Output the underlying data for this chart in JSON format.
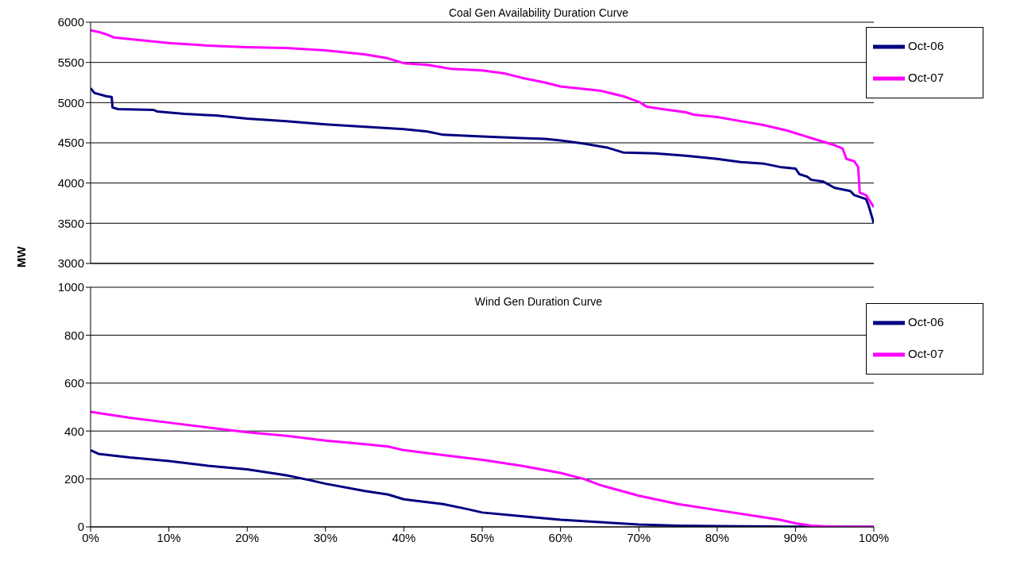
{
  "chart_data": [
    {
      "type": "line",
      "title": "Coal Gen Availability Duration Curve",
      "xlim": [
        0,
        100
      ],
      "ylim": [
        3000,
        6000
      ],
      "yticks": [
        3000,
        3500,
        4000,
        4500,
        5000,
        5500,
        6000
      ],
      "tick_labels": "y",
      "grid": "y",
      "legend": "top right",
      "series": [
        {
          "name": "Oct-06",
          "color": "#000080",
          "x": [
            0,
            0.5,
            2,
            2.7,
            2.8,
            3.5,
            8,
            8.5,
            12,
            16,
            20,
            25,
            30,
            35,
            40,
            43,
            45,
            50,
            55,
            58,
            60,
            63,
            66,
            68,
            72,
            76,
            80,
            83,
            86,
            88,
            90,
            90.5,
            91.5,
            92,
            93.5,
            95,
            97,
            97.5,
            99,
            99.3,
            100
          ],
          "values": [
            5180,
            5120,
            5080,
            5070,
            4940,
            4920,
            4910,
            4890,
            4860,
            4840,
            4800,
            4770,
            4730,
            4700,
            4670,
            4640,
            4600,
            4580,
            4560,
            4550,
            4530,
            4490,
            4440,
            4380,
            4370,
            4340,
            4300,
            4260,
            4240,
            4200,
            4180,
            4110,
            4080,
            4040,
            4020,
            3940,
            3900,
            3850,
            3800,
            3730,
            3500
          ]
        },
        {
          "name": "Oct-07",
          "color": "#ff00ff",
          "x": [
            0,
            1,
            2,
            3,
            5,
            8,
            10,
            15,
            20,
            25,
            30,
            35,
            38,
            40,
            43,
            46,
            50,
            53,
            55,
            58,
            60,
            65,
            68,
            70,
            71,
            73,
            76,
            77,
            80,
            83,
            86,
            89,
            91,
            93,
            95,
            96,
            96.5,
            97.5,
            98,
            98.2,
            99,
            100
          ],
          "values": [
            5900,
            5880,
            5850,
            5810,
            5790,
            5760,
            5740,
            5710,
            5690,
            5680,
            5650,
            5600,
            5550,
            5490,
            5470,
            5420,
            5400,
            5360,
            5310,
            5250,
            5200,
            5150,
            5080,
            5010,
            4950,
            4920,
            4880,
            4850,
            4820,
            4770,
            4720,
            4650,
            4590,
            4530,
            4470,
            4430,
            4300,
            4270,
            4200,
            3880,
            3850,
            3700
          ]
        }
      ]
    },
    {
      "type": "line",
      "title": "Wind Gen Duration Curve",
      "ylabel": "MW",
      "xlim": [
        0,
        100
      ],
      "ylim": [
        0,
        1000
      ],
      "yticks": [
        0,
        200,
        400,
        600,
        800,
        1000
      ],
      "xticks": [
        {
          "value": 0,
          "label": "0%"
        },
        {
          "value": 10,
          "label": "10%"
        },
        {
          "value": 20,
          "label": "20%"
        },
        {
          "value": 30,
          "label": "30%"
        },
        {
          "value": 40,
          "label": "40%"
        },
        {
          "value": 50,
          "label": "50%"
        },
        {
          "value": 60,
          "label": "60%"
        },
        {
          "value": 70,
          "label": "70%"
        },
        {
          "value": 80,
          "label": "80%"
        },
        {
          "value": 90,
          "label": "90%"
        },
        {
          "value": 100,
          "label": "100%"
        }
      ],
      "grid": "y",
      "legend": "top right",
      "series": [
        {
          "name": "Oct-06",
          "color": "#000080",
          "x": [
            0,
            1,
            5,
            10,
            15,
            20,
            25,
            28,
            30,
            35,
            38,
            40,
            45,
            48,
            50,
            55,
            60,
            65,
            70,
            75,
            80,
            90,
            100
          ],
          "values": [
            320,
            305,
            290,
            275,
            255,
            240,
            215,
            195,
            180,
            150,
            135,
            115,
            95,
            75,
            60,
            45,
            30,
            20,
            10,
            5,
            3,
            1,
            0
          ]
        },
        {
          "name": "Oct-07",
          "color": "#ff00ff",
          "x": [
            0,
            2,
            5,
            10,
            15,
            20,
            25,
            30,
            35,
            38,
            40,
            45,
            50,
            55,
            60,
            63,
            65,
            70,
            75,
            80,
            85,
            88,
            90,
            92,
            94,
            96,
            100
          ],
          "values": [
            480,
            470,
            455,
            435,
            415,
            395,
            380,
            360,
            345,
            335,
            320,
            300,
            280,
            255,
            225,
            200,
            175,
            130,
            95,
            70,
            45,
            30,
            15,
            5,
            2,
            0,
            0
          ]
        }
      ]
    }
  ]
}
